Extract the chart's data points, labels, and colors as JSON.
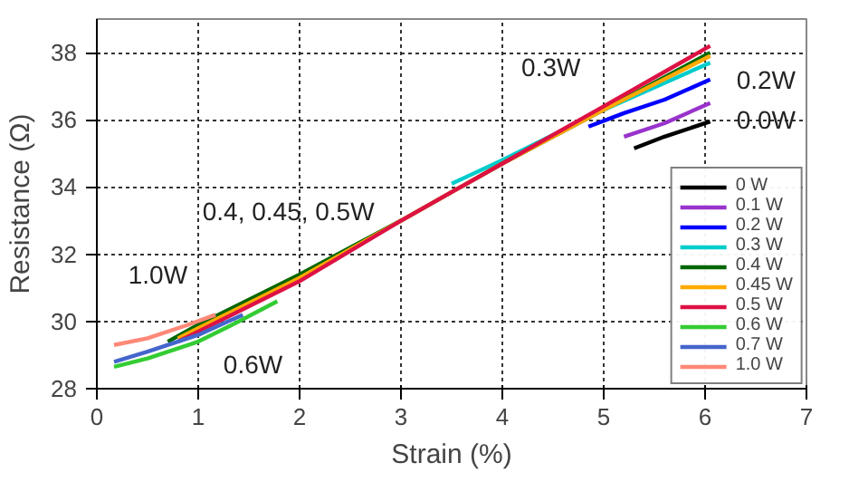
{
  "chart_data": {
    "type": "line",
    "xlabel": "Strain (%)",
    "ylabel": "Resistance (Ω)",
    "xlim": [
      0,
      7
    ],
    "ylim": [
      28,
      39
    ],
    "xticks": [
      0,
      1,
      2,
      3,
      4,
      5,
      6,
      7
    ],
    "yticks": [
      28,
      30,
      32,
      34,
      36,
      38
    ],
    "grid": true,
    "legend": "bottom right",
    "line_style": "solid",
    "marker": "none",
    "series": [
      {
        "name": "0 W",
        "color": "#000000",
        "x": [
          5.3,
          5.6,
          6.05
        ],
        "values": [
          35.15,
          35.5,
          35.95
        ]
      },
      {
        "name": "0.1 W",
        "color": "#9933cc",
        "x": [
          5.2,
          5.6,
          6.05
        ],
        "values": [
          35.5,
          35.9,
          36.5
        ]
      },
      {
        "name": "0.2 W",
        "color": "#0000ff",
        "x": [
          4.85,
          5.2,
          5.6,
          6.05
        ],
        "values": [
          35.8,
          36.2,
          36.6,
          37.2
        ]
      },
      {
        "name": "0.3 W",
        "color": "#00cccc",
        "x": [
          3.5,
          4,
          5,
          6.05
        ],
        "values": [
          34.1,
          34.8,
          36.3,
          37.7
        ]
      },
      {
        "name": "0.4 W",
        "color": "#006600",
        "x": [
          0.7,
          1,
          2,
          3,
          4,
          5,
          6.05
        ],
        "values": [
          29.4,
          29.9,
          31.4,
          33,
          34.7,
          36.3,
          38.0
        ]
      },
      {
        "name": "0.45 W",
        "color": "#ffaa00",
        "x": [
          0.8,
          1,
          2,
          3,
          4,
          5,
          6.05
        ],
        "values": [
          29.5,
          29.8,
          31.3,
          33,
          34.7,
          36.3,
          37.9
        ]
      },
      {
        "name": "0.5 W",
        "color": "#dd1144",
        "x": [
          0.8,
          1,
          2,
          3,
          4,
          5,
          6.05
        ],
        "values": [
          29.4,
          29.7,
          31.2,
          33,
          34.7,
          36.4,
          38.2
        ]
      },
      {
        "name": "0.6 W",
        "color": "#33cc33",
        "x": [
          0.17,
          0.5,
          1,
          1.4,
          1.78
        ],
        "values": [
          28.65,
          28.9,
          29.4,
          30.0,
          30.6
        ]
      },
      {
        "name": "0.7 W",
        "color": "#4466cc",
        "x": [
          0.17,
          0.5,
          1,
          1.44
        ],
        "values": [
          28.8,
          29.1,
          29.6,
          30.2
        ]
      },
      {
        "name": "1.0 W",
        "color": "#ff8877",
        "x": [
          0.17,
          0.5,
          0.9,
          1.17
        ],
        "values": [
          29.3,
          29.5,
          29.9,
          30.2
        ]
      }
    ],
    "annotations": [
      "0.3W",
      "0.2W",
      "0.0W",
      "0.4, 0.45, 0.5W",
      "1.0W",
      "0.6W"
    ]
  }
}
